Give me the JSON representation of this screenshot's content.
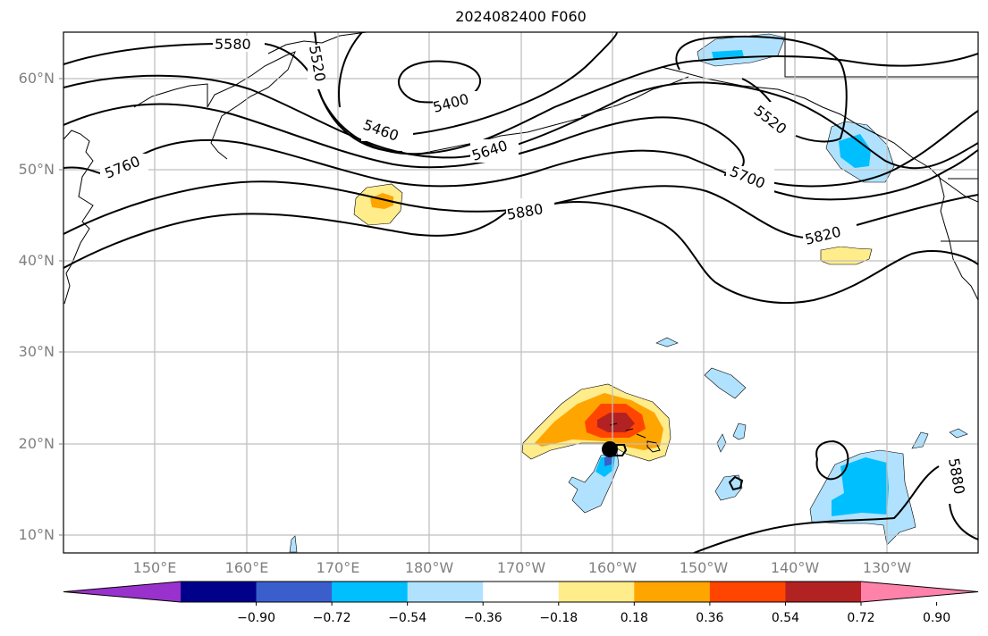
{
  "title": "2024082400 F060",
  "map": {
    "projection": "PlateCarree",
    "extent_lon": [
      140,
      240
    ],
    "extent_lat": [
      8,
      65
    ],
    "latitude_labels": [
      "60°N",
      "50°N",
      "40°N",
      "30°N",
      "20°N",
      "10°N"
    ],
    "longitude_labels": [
      "150°E",
      "160°E",
      "170°E",
      "180°W",
      "170°W",
      "160°W",
      "150°W",
      "140°W",
      "130°W"
    ],
    "contour_field": "500 hPa geopotential height (m)",
    "contour_labels": [
      "5580",
      "5520",
      "5400",
      "5460",
      "5640",
      "5760",
      "5880",
      "5520",
      "5700",
      "5820",
      "5880"
    ],
    "contour_levels": [
      5400,
      5460,
      5520,
      5580,
      5640,
      5700,
      5760,
      5820,
      5880
    ]
  },
  "colorbar": {
    "ticks": [
      "−0.90",
      "−0.72",
      "−0.54",
      "−0.36",
      "−0.18",
      "0.18",
      "0.36",
      "0.54",
      "0.72",
      "0.90"
    ],
    "bins": [
      {
        "range": "< -0.90",
        "color": "#9932cc"
      },
      {
        "range": "-0.90 to -0.72",
        "color": "#00008b"
      },
      {
        "range": "-0.72 to -0.54",
        "color": "#3a5fcd"
      },
      {
        "range": "-0.54 to -0.36",
        "color": "#00bfff"
      },
      {
        "range": "-0.36 to -0.18",
        "color": "#b0e2ff"
      },
      {
        "range": "-0.18 to 0.18",
        "color": "#ffffff"
      },
      {
        "range": "0.18 to 0.36",
        "color": "#ffec8b"
      },
      {
        "range": "0.36 to 0.54",
        "color": "#ffa500"
      },
      {
        "range": "0.54 to 0.72",
        "color": "#ff4500"
      },
      {
        "range": "0.72 to 0.90",
        "color": "#b22222"
      },
      {
        "range": "> 0.90",
        "color": "#ff82ab"
      }
    ],
    "extend": "both"
  },
  "chart_data": {
    "type": "contour-map",
    "title": "2024082400 F060",
    "x_ticks": [
      "150°E",
      "160°E",
      "170°E",
      "180°W",
      "170°W",
      "160°W",
      "150°W",
      "140°W",
      "130°W"
    ],
    "y_ticks": [
      "60°N",
      "50°N",
      "40°N",
      "30°N",
      "20°N",
      "10°N"
    ],
    "xlim": [
      140,
      240
    ],
    "ylim": [
      8,
      65
    ],
    "grid": true,
    "contour_levels": [
      5400,
      5460,
      5520,
      5580,
      5640,
      5700,
      5760,
      5820,
      5880
    ],
    "filled_anomalies": [
      {
        "lon": 185,
        "lat": 46.5,
        "max_bin": "0.36 to 0.54"
      },
      {
        "lon": 222,
        "lat": 51,
        "max_bin": "-0.54 to -0.36"
      },
      {
        "lon": 210,
        "lat": 63,
        "max_bin": "-0.54 to -0.36"
      },
      {
        "lon": 224.5,
        "lat": 40.6,
        "max_bin": "0.18 to 0.36"
      },
      {
        "lon": 200.5,
        "lat": 22,
        "max_bin": "0.72 to 0.90"
      },
      {
        "lon": 200,
        "lat": 17,
        "max_bin": "-0.72 to -0.54"
      },
      {
        "lon": 226,
        "lat": 14,
        "max_bin": "-0.54 to -0.36"
      }
    ],
    "colorbar_ticks": [
      -0.9,
      -0.72,
      -0.54,
      -0.36,
      -0.18,
      0.18,
      0.36,
      0.54,
      0.72,
      0.9
    ]
  }
}
